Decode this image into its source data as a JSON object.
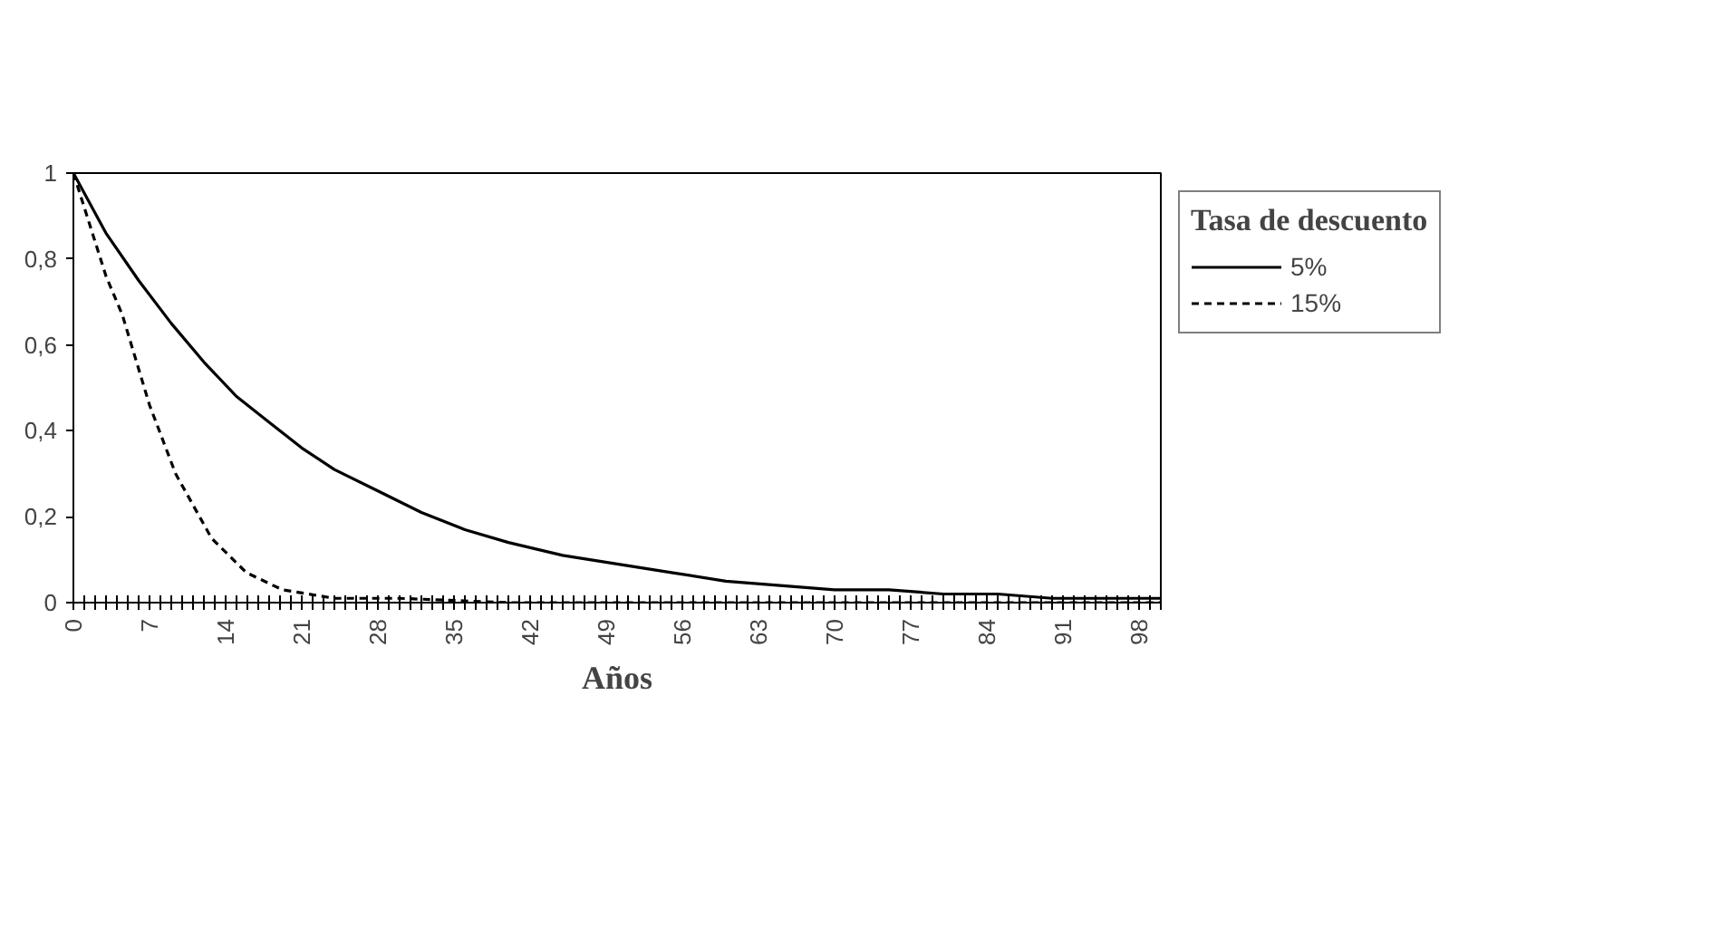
{
  "chart_data": {
    "type": "line",
    "xlabel": "Años",
    "legend_title": "Tasa de descuento",
    "legend": "right",
    "grid": false,
    "marker": "none",
    "xlim": [
      0,
      100
    ],
    "ylim": [
      0,
      1
    ],
    "xticks": [
      0,
      {
        "value": 1,
        "label": null
      },
      {
        "value": 2,
        "label": null
      },
      {
        "value": 3,
        "label": null
      },
      {
        "value": 4,
        "label": null
      },
      {
        "value": 5,
        "label": null
      },
      {
        "value": 6,
        "label": null
      },
      7,
      {
        "value": 8,
        "label": null
      },
      {
        "value": 9,
        "label": null
      },
      {
        "value": 10,
        "label": null
      },
      {
        "value": 11,
        "label": null
      },
      {
        "value": 12,
        "label": null
      },
      {
        "value": 13,
        "label": null
      },
      14,
      {
        "value": 15,
        "label": null
      },
      {
        "value": 16,
        "label": null
      },
      {
        "value": 17,
        "label": null
      },
      {
        "value": 18,
        "label": null
      },
      {
        "value": 19,
        "label": null
      },
      {
        "value": 20,
        "label": null
      },
      21,
      {
        "value": 22,
        "label": null
      },
      {
        "value": 23,
        "label": null
      },
      {
        "value": 24,
        "label": null
      },
      {
        "value": 25,
        "label": null
      },
      {
        "value": 26,
        "label": null
      },
      {
        "value": 27,
        "label": null
      },
      28,
      {
        "value": 29,
        "label": null
      },
      {
        "value": 30,
        "label": null
      },
      {
        "value": 31,
        "label": null
      },
      {
        "value": 32,
        "label": null
      },
      {
        "value": 33,
        "label": null
      },
      {
        "value": 34,
        "label": null
      },
      35,
      {
        "value": 36,
        "label": null
      },
      {
        "value": 37,
        "label": null
      },
      {
        "value": 38,
        "label": null
      },
      {
        "value": 39,
        "label": null
      },
      {
        "value": 40,
        "label": null
      },
      {
        "value": 41,
        "label": null
      },
      42,
      {
        "value": 43,
        "label": null
      },
      {
        "value": 44,
        "label": null
      },
      {
        "value": 45,
        "label": null
      },
      {
        "value": 46,
        "label": null
      },
      {
        "value": 47,
        "label": null
      },
      {
        "value": 48,
        "label": null
      },
      49,
      {
        "value": 50,
        "label": null
      },
      {
        "value": 51,
        "label": null
      },
      {
        "value": 52,
        "label": null
      },
      {
        "value": 53,
        "label": null
      },
      {
        "value": 54,
        "label": null
      },
      {
        "value": 55,
        "label": null
      },
      56,
      {
        "value": 57,
        "label": null
      },
      {
        "value": 58,
        "label": null
      },
      {
        "value": 59,
        "label": null
      },
      {
        "value": 60,
        "label": null
      },
      {
        "value": 61,
        "label": null
      },
      {
        "value": 62,
        "label": null
      },
      63,
      {
        "value": 64,
        "label": null
      },
      {
        "value": 65,
        "label": null
      },
      {
        "value": 66,
        "label": null
      },
      {
        "value": 67,
        "label": null
      },
      {
        "value": 68,
        "label": null
      },
      {
        "value": 69,
        "label": null
      },
      70,
      {
        "value": 71,
        "label": null
      },
      {
        "value": 72,
        "label": null
      },
      {
        "value": 73,
        "label": null
      },
      {
        "value": 74,
        "label": null
      },
      {
        "value": 75,
        "label": null
      },
      {
        "value": 76,
        "label": null
      },
      77,
      {
        "value": 78,
        "label": null
      },
      {
        "value": 79,
        "label": null
      },
      {
        "value": 80,
        "label": null
      },
      {
        "value": 81,
        "label": null
      },
      {
        "value": 82,
        "label": null
      },
      {
        "value": 83,
        "label": null
      },
      84,
      {
        "value": 85,
        "label": null
      },
      {
        "value": 86,
        "label": null
      },
      {
        "value": 87,
        "label": null
      },
      {
        "value": 88,
        "label": null
      },
      {
        "value": 89,
        "label": null
      },
      {
        "value": 90,
        "label": null
      },
      91,
      {
        "value": 92,
        "label": null
      },
      {
        "value": 93,
        "label": null
      },
      {
        "value": 94,
        "label": null
      },
      {
        "value": 95,
        "label": null
      },
      {
        "value": 96,
        "label": null
      },
      {
        "value": 97,
        "label": null
      },
      98,
      {
        "value": 99,
        "label": null
      },
      {
        "value": 100,
        "label": null
      }
    ],
    "yticks": [
      0,
      {
        "value": 0.2,
        "label": "0,2"
      },
      {
        "value": 0.4,
        "label": "0,4"
      },
      {
        "value": 0.6,
        "label": "0,6"
      },
      {
        "value": 0.8,
        "label": "0,8"
      },
      1
    ],
    "series": [
      {
        "name": "5%",
        "color": "#000000",
        "line_style": "solid",
        "x": [
          0,
          3,
          6,
          9,
          12,
          15,
          18,
          21,
          24,
          28,
          32,
          36,
          40,
          45,
          50,
          55,
          60,
          65,
          70,
          75,
          80,
          85,
          90,
          95,
          100
        ],
        "values": [
          1,
          0.86,
          0.75,
          0.65,
          0.56,
          0.48,
          0.42,
          0.36,
          0.31,
          0.26,
          0.21,
          0.17,
          0.14,
          0.11,
          0.09,
          0.07,
          0.05,
          0.04,
          0.03,
          0.03,
          0.02,
          0.02,
          0.01,
          0.01,
          0.01
        ]
      },
      {
        "name": "15%",
        "color": "#000000",
        "line_style": "dashed",
        "x": [
          0,
          3,
          4.5,
          7,
          9.4,
          12.7,
          15.9,
          19.2,
          24,
          30,
          40,
          60,
          80,
          100
        ],
        "values": [
          1,
          0.76,
          0.67,
          0.46,
          0.3,
          0.15,
          0.07,
          0.03,
          0.01,
          0.01,
          0,
          0,
          0,
          0
        ]
      }
    ]
  }
}
